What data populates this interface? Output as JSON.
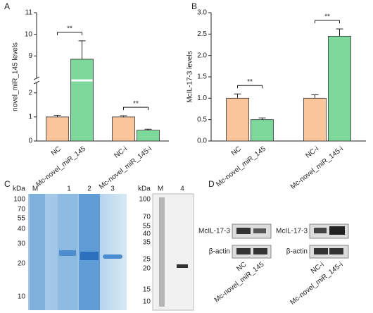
{
  "chart_data": [
    {
      "type": "bar",
      "label": "A",
      "ylabel": "novel_miR_145 levels",
      "categories": [
        "NC",
        "Mc-novel_miR_145",
        "NC-i",
        "Mc-novel_miR_145-i"
      ],
      "values": [
        1.0,
        8.85,
        1.0,
        0.45
      ],
      "errors": [
        0.07,
        0.85,
        0.05,
        0.04
      ],
      "colors": [
        "#fbc59b",
        "#7fd89b",
        "#fbc59b",
        "#7fd89b"
      ],
      "ylim": [
        0,
        11
      ],
      "ybreak": [
        2.4,
        8
      ],
      "yticks": [
        0,
        1,
        2,
        9,
        10,
        11
      ],
      "annotations": [
        "**",
        "**"
      ]
    },
    {
      "type": "bar",
      "label": "B",
      "ylabel": "McIL-17-3 levels",
      "categories": [
        "NC",
        "Mc-novel_miR_145",
        "NC-i",
        "Mc-novel_miR_145-i"
      ],
      "values": [
        1.0,
        0.5,
        1.0,
        2.45
      ],
      "errors": [
        0.1,
        0.04,
        0.08,
        0.17
      ],
      "colors": [
        "#fbc59b",
        "#7fd89b",
        "#fbc59b",
        "#7fd89b"
      ],
      "ylim": [
        0,
        3
      ],
      "yticks": [
        {
          "value": 0,
          "label": "0.0"
        },
        {
          "value": 0.5,
          "label": "0.5"
        },
        {
          "value": 1,
          "label": "1.0"
        },
        {
          "value": 1.5,
          "label": "1.5"
        },
        {
          "value": 2,
          "label": "2.0"
        },
        {
          "value": 2.5,
          "label": "2.5"
        },
        {
          "value": 3,
          "label": "3.0"
        }
      ],
      "annotations": [
        "**",
        "**"
      ]
    }
  ],
  "panel_c": {
    "label": "C",
    "gel": {
      "unit": "kDa",
      "lanes": [
        "M",
        "1",
        "2",
        "3"
      ],
      "markers": [
        "100",
        "70",
        "55",
        "40",
        "30",
        "20",
        "10"
      ]
    },
    "blot": {
      "unit": "kDa",
      "lanes": [
        "M",
        "4"
      ],
      "markers": [
        "100",
        "70",
        "55",
        "40",
        "35",
        "25",
        "20",
        "15",
        "10"
      ]
    }
  },
  "panel_d": {
    "label": "D",
    "left": {
      "rows": [
        "McIL-17-3",
        "β-actin"
      ],
      "lanes": [
        "NC",
        "Mc-novel_miR_145"
      ]
    },
    "right": {
      "rows": [
        "McIL-17-3",
        "β-actin"
      ],
      "lanes": [
        "NC-i",
        "Mc-novel_miR_145-i"
      ]
    }
  }
}
